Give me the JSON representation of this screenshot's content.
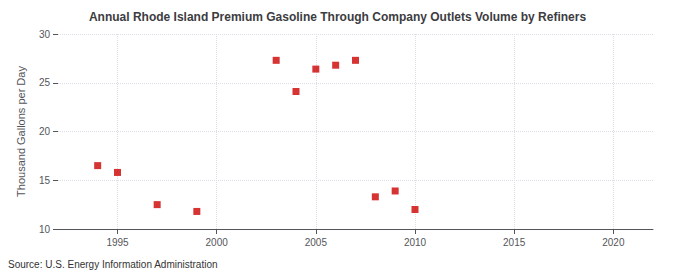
{
  "chart_data": {
    "type": "scatter",
    "title": "Annual Rhode Island Premium Gasoline Through Company Outlets Volume by Refiners",
    "ylabel": "Thousand Gallons per Day",
    "source": "Source: U.S. Energy Information Administration",
    "x": [
      1994,
      1995,
      1997,
      1999,
      2003,
      2004,
      2005,
      2006,
      2007,
      2008,
      2009,
      2010
    ],
    "values": [
      16.5,
      15.8,
      12.5,
      11.8,
      27.3,
      24.1,
      26.4,
      26.8,
      27.3,
      13.3,
      13.9,
      12.0
    ],
    "color": "#cc0000",
    "marker": "square",
    "xlim": [
      1992,
      2022
    ],
    "ylim": [
      10,
      30
    ],
    "xticks": [
      1995,
      2000,
      2005,
      2010,
      2015,
      2020
    ],
    "yticks": [
      10,
      15,
      20,
      25,
      30
    ],
    "grid": true
  }
}
